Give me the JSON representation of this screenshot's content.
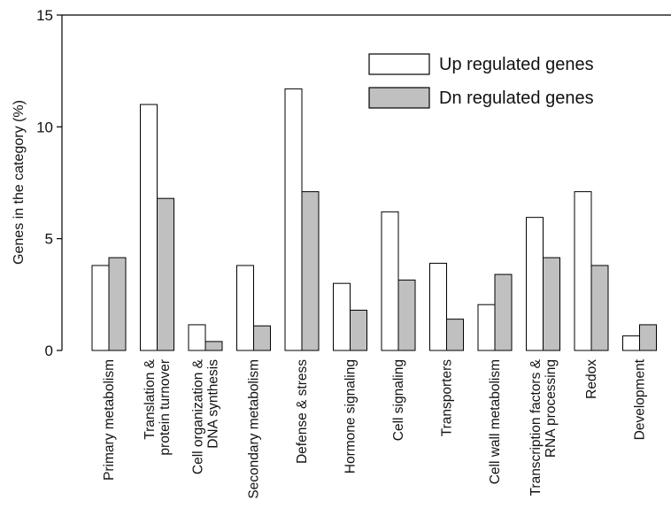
{
  "chart_data": {
    "type": "bar",
    "title": "",
    "xlabel": "",
    "ylabel": "Genes in the category (%)",
    "ylim": [
      0,
      15
    ],
    "yticks": [
      0,
      5,
      10,
      15
    ],
    "grid": false,
    "legend_position": "top-right",
    "categories": [
      [
        "Primary metabolism"
      ],
      [
        "Translation &",
        "protein turnover"
      ],
      [
        "Cell organization &",
        "DNA synthesis"
      ],
      [
        "Secondary metabolism"
      ],
      [
        "Defense & stress"
      ],
      [
        "Hormone signaling"
      ],
      [
        "Cell signaling"
      ],
      [
        "Transporters"
      ],
      [
        "Cell wall metabolism"
      ],
      [
        "Transcription factors &",
        "RNA processing"
      ],
      [
        "Redox"
      ],
      [
        "Development"
      ]
    ],
    "series": [
      {
        "name": "Up regulated genes",
        "color": "#ffffff",
        "values": [
          3.8,
          11.0,
          1.15,
          3.8,
          11.7,
          3.0,
          6.2,
          3.9,
          2.05,
          5.95,
          7.1,
          0.65
        ]
      },
      {
        "name": "Dn regulated genes",
        "color": "#c0c0c0",
        "values": [
          4.15,
          6.8,
          0.4,
          1.1,
          7.1,
          1.8,
          3.15,
          1.4,
          3.4,
          4.15,
          3.8,
          1.15
        ]
      }
    ]
  }
}
